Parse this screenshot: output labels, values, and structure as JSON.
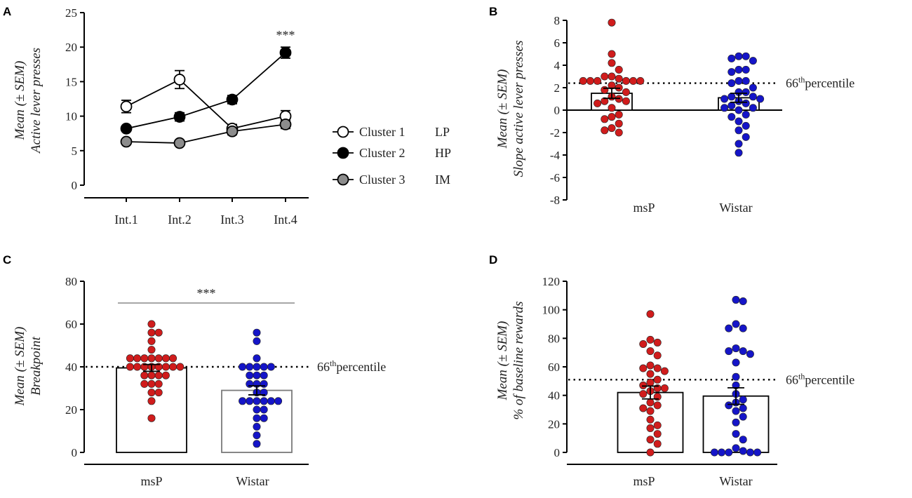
{
  "chart_data": [
    {
      "panel": "A",
      "type": "line",
      "ylabel_line1": "Mean (± SEM)",
      "ylabel_line2": "Active lever presses",
      "categories": [
        "Int.1",
        "Int.2",
        "Int.3",
        "Int.4"
      ],
      "ylim": [
        0,
        25
      ],
      "yticks": [
        0,
        5,
        10,
        15,
        20,
        25
      ],
      "series": [
        {
          "name": "Cluster 1",
          "tag": "LP",
          "marker": "open",
          "values": [
            11.4,
            15.3,
            8.2,
            10.0
          ],
          "sem": [
            0.9,
            1.3,
            0.6,
            0.8
          ]
        },
        {
          "name": "Cluster 2",
          "tag": "HP",
          "marker": "filled",
          "values": [
            8.2,
            9.9,
            12.4,
            19.2
          ],
          "sem": [
            0.3,
            0.6,
            0.6,
            0.8
          ]
        },
        {
          "name": "Cluster 3",
          "tag": "IM",
          "marker": "gray",
          "values": [
            6.3,
            6.1,
            7.8,
            8.8
          ],
          "sem": [
            0.3,
            0.2,
            0.5,
            0.6
          ]
        }
      ],
      "annotation": "***"
    },
    {
      "panel": "B",
      "type": "bar",
      "ylabel_line1": "Mean (± SEM)",
      "ylabel_line2": "Slope active lever presses",
      "categories": [
        "msP",
        "Wistar"
      ],
      "ylim": [
        -8,
        8
      ],
      "yticks": [
        -8,
        -6,
        -4,
        -2,
        0,
        2,
        4,
        6,
        8
      ],
      "bar_means": [
        1.5,
        1.1
      ],
      "bar_sem": [
        0.45,
        0.4
      ],
      "threshold": 2.4,
      "threshold_sup": "th",
      "threshold_label_pre": "66",
      "threshold_label_post": "percentile",
      "points": [
        [
          7.8,
          5.0,
          4.2,
          3.6,
          3.0,
          3.0,
          2.8,
          2.6,
          2.6,
          2.6,
          2.6,
          2.6,
          2.6,
          2.2,
          2.0,
          1.8,
          1.6,
          1.2,
          1.0,
          0.8,
          0.8,
          0.6,
          0.2,
          -0.4,
          -0.6,
          -0.8,
          -1.2,
          -1.6,
          -1.8,
          -2.0
        ],
        [
          4.8,
          4.8,
          4.6,
          4.4,
          3.6,
          3.6,
          3.4,
          2.6,
          2.6,
          2.4,
          2.0,
          1.6,
          1.6,
          1.2,
          1.2,
          1.0,
          1.0,
          0.8,
          0.6,
          0.4,
          0.2,
          0.2,
          0.0,
          -0.4,
          -0.6,
          -1.0,
          -1.4,
          -1.8,
          -2.4,
          -3.0,
          -3.8
        ]
      ]
    },
    {
      "panel": "C",
      "type": "bar",
      "ylabel_line1": "Mean (± SEM)",
      "ylabel_line2": "Breakpoint",
      "categories": [
        "msP",
        "Wistar"
      ],
      "ylim": [
        0,
        80
      ],
      "yticks": [
        0,
        20,
        40,
        60,
        80
      ],
      "bar_means": [
        39.5,
        29
      ],
      "bar_sem": [
        1.6,
        2.1
      ],
      "threshold": 40,
      "threshold_sup": "th",
      "threshold_label_pre": "66",
      "threshold_label_post": "percentile",
      "annotation": "***",
      "points": [
        [
          60,
          56,
          56,
          52,
          48,
          44,
          44,
          44,
          44,
          44,
          44,
          44,
          40,
          40,
          40,
          40,
          40,
          40,
          40,
          40,
          36,
          36,
          36,
          36,
          32,
          32,
          32,
          28,
          28,
          24,
          16
        ],
        [
          56,
          52,
          44,
          40,
          40,
          40,
          40,
          40,
          36,
          36,
          36,
          32,
          32,
          32,
          28,
          28,
          24,
          24,
          24,
          24,
          24,
          24,
          20,
          20,
          16,
          16,
          12,
          8,
          4
        ]
      ]
    },
    {
      "panel": "D",
      "type": "bar",
      "ylabel_line1": "Mean (± SEM)",
      "ylabel_line2": "% of baseline rewards",
      "categories": [
        "msP",
        "Wistar"
      ],
      "ylim": [
        0,
        120
      ],
      "yticks": [
        0,
        20,
        40,
        60,
        80,
        100,
        120
      ],
      "bar_means": [
        42,
        39.5
      ],
      "bar_sem": [
        4.5,
        5.8
      ],
      "threshold": 51,
      "threshold_sup": "th",
      "threshold_label_pre": "66",
      "threshold_label_post": "percentile",
      "points": [
        [
          97,
          79,
          77,
          76,
          71,
          68,
          61,
          59,
          59,
          57,
          55,
          51,
          49,
          47,
          45,
          45,
          43,
          41,
          39,
          35,
          33,
          31,
          29,
          23,
          19,
          17,
          13,
          9,
          6,
          0
        ],
        [
          107,
          106,
          90,
          87,
          87,
          73,
          71,
          71,
          69,
          63,
          53,
          47,
          41,
          37,
          35,
          33,
          31,
          29,
          25,
          21,
          13,
          9,
          3,
          1,
          0,
          0,
          0,
          0,
          0
        ]
      ]
    }
  ],
  "panel_letters": [
    "A",
    "B",
    "C",
    "D"
  ],
  "colors": {
    "msP": "#d01c1c",
    "Wistar": "#1515c8",
    "gray_marker": "#8c8c8c",
    "axis": "#000000"
  }
}
